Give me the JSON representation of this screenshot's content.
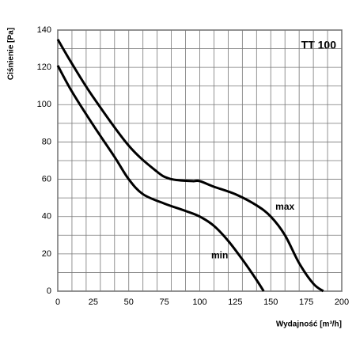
{
  "chart_data": {
    "type": "line",
    "title": "TT 100",
    "x_label": "Wydajność [m³/h]",
    "y_label": "Ciśnienie [Pa]",
    "xlim": [
      0,
      200
    ],
    "ylim": [
      0,
      140
    ],
    "xticks": [
      0,
      25,
      50,
      75,
      100,
      125,
      150,
      175,
      200
    ],
    "yticks": [
      0,
      20,
      40,
      60,
      80,
      100,
      120,
      140
    ],
    "xgrid": [
      0,
      10,
      20,
      30,
      40,
      50,
      60,
      70,
      80,
      90,
      100,
      110,
      120,
      130,
      140,
      150,
      160,
      170,
      180,
      190,
      200
    ],
    "ygrid": [
      0,
      10,
      20,
      30,
      40,
      50,
      60,
      70,
      80,
      90,
      100,
      110,
      120,
      130,
      140
    ],
    "grid": true,
    "series": [
      {
        "name": "max",
        "color": "#000000",
        "x": [
          0,
          10,
          25,
          50,
          70,
          78,
          85,
          95,
          100,
          110,
          125,
          140,
          150,
          160,
          170,
          180,
          187
        ],
        "values": [
          135,
          122,
          104,
          78,
          64,
          60.5,
          59.5,
          59,
          59,
          56,
          52,
          46,
          40,
          30,
          15,
          4,
          0
        ]
      },
      {
        "name": "min",
        "color": "#000000",
        "x": [
          0,
          10,
          25,
          40,
          50,
          60,
          75,
          90,
          100,
          110,
          120,
          130,
          140,
          145
        ],
        "values": [
          121,
          107,
          89,
          72,
          60,
          52,
          47,
          43,
          40,
          35,
          27,
          17,
          6,
          0
        ]
      }
    ]
  }
}
